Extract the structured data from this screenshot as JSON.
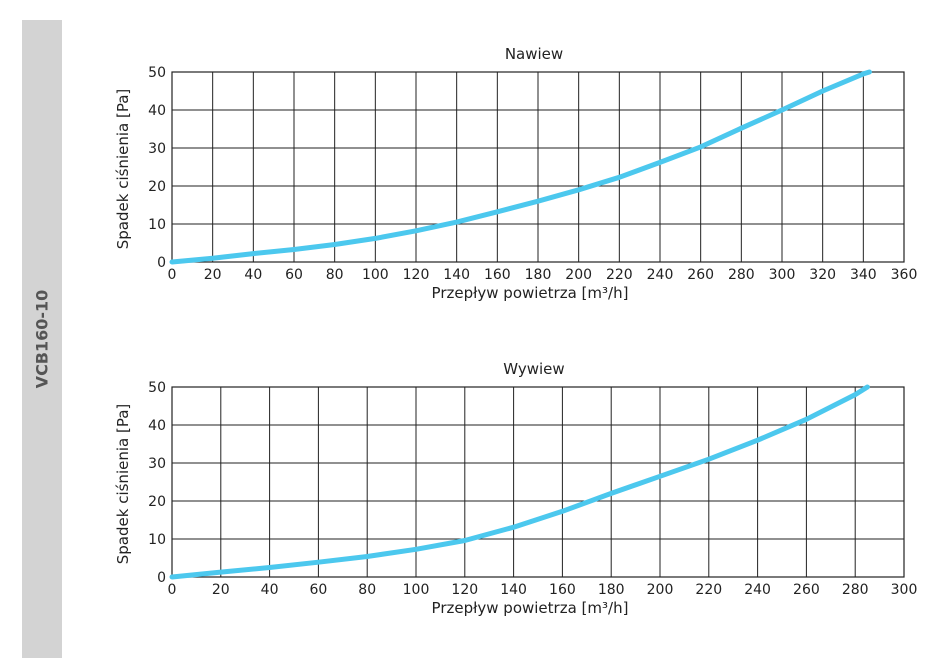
{
  "side_label": "VCB160-10",
  "styles": {
    "curve_color": "#4cc8ee",
    "grid_color": "#222222"
  },
  "chart_data": [
    {
      "type": "line",
      "title": "Nawiew",
      "xlabel": "Przepływ powietrza [m³/h]",
      "ylabel": "Spadek ciśnienia [Pa]",
      "xlim": [
        0,
        360
      ],
      "ylim": [
        0,
        50
      ],
      "x_ticks": [
        "0",
        "20",
        "40",
        "60",
        "80",
        "100",
        "120",
        "140",
        "160",
        "180",
        "200",
        "220",
        "240",
        "260",
        "280",
        "300",
        "320",
        "340",
        "360"
      ],
      "y_ticks": [
        "0",
        "10",
        "20",
        "30",
        "40",
        "50"
      ],
      "grid": true,
      "series": [
        {
          "x": [
            0,
            20,
            40,
            60,
            80,
            100,
            120,
            140,
            160,
            180,
            200,
            220,
            240,
            260,
            280,
            300,
            320,
            340,
            343
          ],
          "y": [
            0,
            1,
            2.2,
            3.3,
            4.6,
            6.2,
            8.2,
            10.5,
            13.2,
            16,
            19,
            22.3,
            26.2,
            30.3,
            35.2,
            40,
            45,
            49.5,
            50
          ]
        }
      ]
    },
    {
      "type": "line",
      "title": "Wywiew",
      "xlabel": "Przepływ powietrza [m³/h]",
      "ylabel": "Spadek ciśnienia [Pa]",
      "xlim": [
        0,
        300
      ],
      "ylim": [
        0,
        50
      ],
      "x_ticks": [
        "0",
        "20",
        "40",
        "60",
        "80",
        "100",
        "120",
        "140",
        "160",
        "180",
        "200",
        "220",
        "240",
        "260",
        "280",
        "300"
      ],
      "y_ticks": [
        "0",
        "10",
        "20",
        "30",
        "40",
        "50"
      ],
      "grid": true,
      "series": [
        {
          "x": [
            0,
            20,
            40,
            60,
            80,
            100,
            120,
            140,
            160,
            180,
            200,
            220,
            240,
            260,
            280,
            285
          ],
          "y": [
            0,
            1.3,
            2.5,
            3.9,
            5.4,
            7.3,
            9.6,
            13.1,
            17.3,
            22,
            26.5,
            31,
            36,
            41.5,
            48,
            50
          ]
        }
      ]
    }
  ]
}
